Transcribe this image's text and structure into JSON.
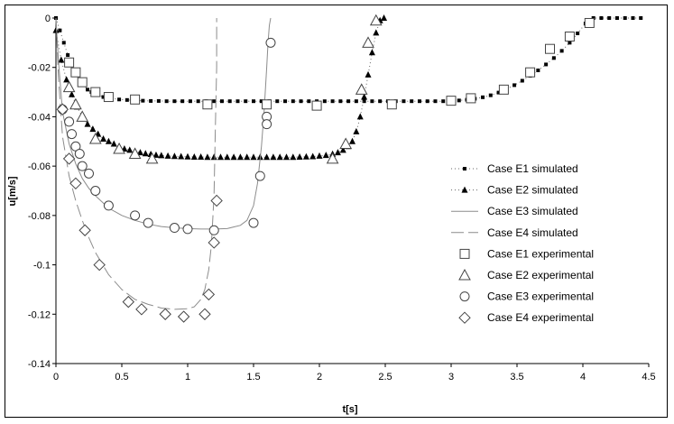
{
  "chart_data": {
    "type": "scatter",
    "xlabel": "t[s]",
    "ylabel": "u[m/s]",
    "xlim": [
      0,
      4.5
    ],
    "ylim": [
      -0.14,
      0
    ],
    "xticks": [
      0,
      0.5,
      1,
      1.5,
      2,
      2.5,
      3,
      3.5,
      4,
      4.5
    ],
    "xtick_labels": [
      "0",
      "0.5",
      "1",
      "1.5",
      "2",
      "2.5",
      "3",
      "3.5",
      "4",
      "4.5"
    ],
    "yticks": [
      0,
      -0.02,
      -0.04,
      -0.06,
      -0.08,
      -0.1,
      -0.12,
      -0.14
    ],
    "ytick_labels": [
      "0",
      "-0.02",
      "-0.04",
      "-0.06",
      "-0.08",
      "-0.1",
      "-0.12",
      "-0.14"
    ],
    "grid": false,
    "legend_position": "right",
    "series": [
      {
        "name": "Case E1 simulated",
        "style": "dotted-square-markers",
        "color": "#000000",
        "x": [
          0,
          0.03,
          0.06,
          0.09,
          0.12,
          0.15,
          0.18,
          0.21,
          0.24,
          0.27,
          0.3,
          0.36,
          0.42,
          0.48,
          0.54,
          0.6,
          0.66,
          0.72,
          0.78,
          0.84,
          0.9,
          0.96,
          1.02,
          1.08,
          1.14,
          1.2,
          1.26,
          1.32,
          1.38,
          1.44,
          1.5,
          1.56,
          1.62,
          1.68,
          1.74,
          1.8,
          1.86,
          1.92,
          1.98,
          2.04,
          2.1,
          2.16,
          2.22,
          2.28,
          2.34,
          2.4,
          2.46,
          2.52,
          2.58,
          2.64,
          2.7,
          2.76,
          2.82,
          2.88,
          2.94,
          3.0,
          3.06,
          3.12,
          3.18,
          3.24,
          3.3,
          3.36,
          3.42,
          3.48,
          3.54,
          3.6,
          3.66,
          3.72,
          3.78,
          3.84,
          3.9,
          3.96,
          4.02,
          4.08,
          4.14,
          4.2,
          4.26,
          4.32,
          4.38,
          4.44
        ],
        "y": [
          0,
          -0.005,
          -0.01,
          -0.015,
          -0.019,
          -0.022,
          -0.025,
          -0.027,
          -0.029,
          -0.03,
          -0.031,
          -0.032,
          -0.0325,
          -0.033,
          -0.0332,
          -0.0334,
          -0.0335,
          -0.0336,
          -0.0336,
          -0.0337,
          -0.0337,
          -0.0337,
          -0.0337,
          -0.0337,
          -0.0337,
          -0.0337,
          -0.0337,
          -0.0337,
          -0.0337,
          -0.0337,
          -0.0337,
          -0.0337,
          -0.0337,
          -0.0337,
          -0.0337,
          -0.0337,
          -0.0337,
          -0.0337,
          -0.0337,
          -0.0337,
          -0.0337,
          -0.0337,
          -0.0337,
          -0.0337,
          -0.0337,
          -0.0337,
          -0.0337,
          -0.0337,
          -0.0337,
          -0.0337,
          -0.0337,
          -0.0337,
          -0.0337,
          -0.0337,
          -0.0337,
          -0.0336,
          -0.0334,
          -0.0331,
          -0.0327,
          -0.0321,
          -0.0313,
          -0.0302,
          -0.0288,
          -0.0272,
          -0.0254,
          -0.0234,
          -0.0212,
          -0.0188,
          -0.0162,
          -0.0133,
          -0.01,
          -0.0062,
          -0.0022,
          0,
          0,
          0,
          0,
          0,
          0,
          0
        ]
      },
      {
        "name": "Case E2 simulated",
        "style": "dotted-triangle-markers",
        "color": "#000000",
        "x": [
          0,
          0.04,
          0.08,
          0.12,
          0.16,
          0.2,
          0.24,
          0.28,
          0.32,
          0.36,
          0.4,
          0.44,
          0.48,
          0.52,
          0.56,
          0.6,
          0.64,
          0.68,
          0.72,
          0.76,
          0.8,
          0.85,
          0.9,
          0.95,
          1.0,
          1.05,
          1.1,
          1.15,
          1.2,
          1.25,
          1.3,
          1.35,
          1.4,
          1.45,
          1.5,
          1.55,
          1.6,
          1.65,
          1.7,
          1.75,
          1.8,
          1.85,
          1.9,
          1.95,
          2.0,
          2.05,
          2.1,
          2.14,
          2.18,
          2.22,
          2.25,
          2.28,
          2.31,
          2.34,
          2.37,
          2.4,
          2.43,
          2.46,
          2.49
        ],
        "y": [
          -0.005,
          -0.017,
          -0.025,
          -0.031,
          -0.036,
          -0.04,
          -0.043,
          -0.045,
          -0.047,
          -0.049,
          -0.05,
          -0.051,
          -0.052,
          -0.053,
          -0.0535,
          -0.054,
          -0.0545,
          -0.0549,
          -0.0552,
          -0.0555,
          -0.0557,
          -0.0559,
          -0.056,
          -0.0561,
          -0.0562,
          -0.0563,
          -0.0563,
          -0.0564,
          -0.0564,
          -0.0564,
          -0.0564,
          -0.0564,
          -0.0564,
          -0.0564,
          -0.0564,
          -0.0564,
          -0.0564,
          -0.0564,
          -0.0564,
          -0.0564,
          -0.0564,
          -0.0563,
          -0.0562,
          -0.0561,
          -0.0559,
          -0.0556,
          -0.0551,
          -0.0545,
          -0.0535,
          -0.052,
          -0.05,
          -0.046,
          -0.04,
          -0.032,
          -0.023,
          -0.014,
          -0.006,
          -0.001,
          0
        ]
      },
      {
        "name": "Case E3 simulated",
        "style": "solid-thin",
        "color": "#999999",
        "x": [
          0,
          0.02,
          0.05,
          0.1,
          0.15,
          0.2,
          0.25,
          0.3,
          0.4,
          0.5,
          0.6,
          0.7,
          0.8,
          0.9,
          1.0,
          1.1,
          1.2,
          1.3,
          1.4,
          1.45,
          1.5,
          1.53,
          1.56,
          1.58,
          1.6,
          1.61,
          1.62,
          1.63
        ],
        "y": [
          0,
          -0.018,
          -0.038,
          -0.051,
          -0.059,
          -0.065,
          -0.069,
          -0.072,
          -0.077,
          -0.08,
          -0.082,
          -0.0835,
          -0.0845,
          -0.085,
          -0.0853,
          -0.0855,
          -0.0855,
          -0.0853,
          -0.084,
          -0.082,
          -0.076,
          -0.067,
          -0.052,
          -0.038,
          -0.02,
          -0.01,
          -0.003,
          0
        ]
      },
      {
        "name": "Case E4 simulated",
        "style": "long-dash",
        "color": "#999999",
        "x": [
          0,
          0.02,
          0.05,
          0.1,
          0.15,
          0.2,
          0.25,
          0.3,
          0.4,
          0.5,
          0.6,
          0.7,
          0.8,
          0.9,
          1.0,
          1.05,
          1.1,
          1.13,
          1.16,
          1.18,
          1.2,
          1.21,
          1.22,
          1.22
        ],
        "y": [
          0,
          -0.025,
          -0.048,
          -0.064,
          -0.074,
          -0.082,
          -0.089,
          -0.095,
          -0.104,
          -0.11,
          -0.114,
          -0.116,
          -0.1175,
          -0.118,
          -0.1178,
          -0.117,
          -0.114,
          -0.11,
          -0.102,
          -0.092,
          -0.072,
          -0.045,
          -0.02,
          0
        ]
      },
      {
        "name": "Case E1 experimental",
        "style": "open-square",
        "color": "#000000",
        "x": [
          0.1,
          0.15,
          0.2,
          0.3,
          0.4,
          0.6,
          1.15,
          1.6,
          1.98,
          2.55,
          3.0,
          3.15,
          3.4,
          3.6,
          3.75,
          3.9,
          4.05
        ],
        "y": [
          -0.018,
          -0.022,
          -0.026,
          -0.03,
          -0.032,
          -0.033,
          -0.035,
          -0.035,
          -0.0355,
          -0.035,
          -0.0335,
          -0.0325,
          -0.029,
          -0.022,
          -0.0125,
          -0.0075,
          -0.002
        ]
      },
      {
        "name": "Case E2 experimental",
        "style": "open-triangle",
        "color": "#000000",
        "x": [
          0.1,
          0.15,
          0.2,
          0.3,
          0.48,
          0.6,
          0.73,
          2.1,
          2.2,
          2.32,
          2.37,
          2.43
        ],
        "y": [
          -0.028,
          -0.035,
          -0.04,
          -0.049,
          -0.053,
          -0.055,
          -0.057,
          -0.057,
          -0.051,
          -0.029,
          -0.01,
          -0.001
        ]
      },
      {
        "name": "Case E3 experimental",
        "style": "open-circle",
        "color": "#000000",
        "x": [
          0.05,
          0.1,
          0.12,
          0.15,
          0.18,
          0.2,
          0.25,
          0.3,
          0.4,
          0.6,
          0.7,
          0.9,
          1.0,
          1.2,
          1.5,
          1.55,
          1.6,
          1.6,
          1.63
        ],
        "y": [
          -0.037,
          -0.042,
          -0.047,
          -0.052,
          -0.055,
          -0.06,
          -0.063,
          -0.07,
          -0.076,
          -0.08,
          -0.083,
          -0.085,
          -0.0855,
          -0.086,
          -0.083,
          -0.064,
          -0.04,
          -0.043,
          -0.01
        ]
      },
      {
        "name": "Case E4 experimental",
        "style": "open-diamond",
        "color": "#000000",
        "x": [
          0.05,
          0.1,
          0.15,
          0.22,
          0.33,
          0.55,
          0.65,
          0.83,
          0.97,
          1.13,
          1.16,
          1.2,
          1.22
        ],
        "y": [
          -0.037,
          -0.057,
          -0.067,
          -0.086,
          -0.1,
          -0.115,
          -0.118,
          -0.12,
          -0.121,
          -0.12,
          -0.112,
          -0.091,
          -0.074
        ]
      }
    ]
  }
}
